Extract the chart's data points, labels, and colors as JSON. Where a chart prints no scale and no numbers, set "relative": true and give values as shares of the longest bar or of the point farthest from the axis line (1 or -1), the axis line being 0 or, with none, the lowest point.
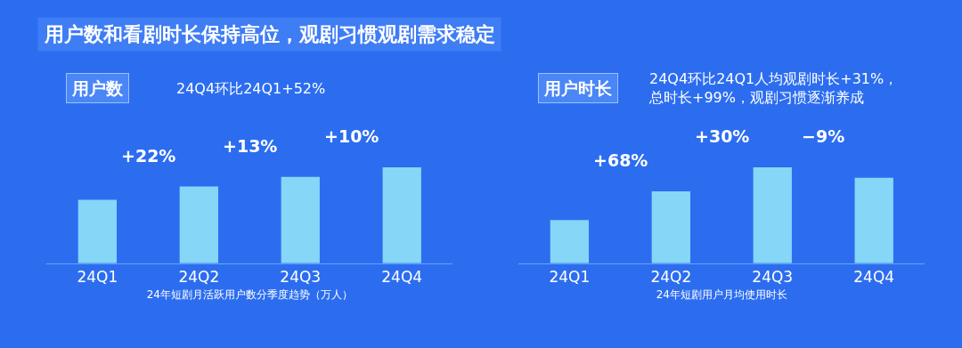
{
  "chart_data": [
    {
      "type": "other",
      "title": "用户数和看剧时长保持高位，观剧习惯观剧需求稳定"
    },
    {
      "type": "bar",
      "relative": true,
      "title": "用户数",
      "subtitle": "24Q4环比24Q1+52%",
      "xlabel": "24年短剧月活跃用户数分季度趋势（万人）",
      "categories": [
        "24Q1",
        "24Q2",
        "24Q3",
        "24Q4"
      ],
      "values": [
        0.66,
        0.8,
        0.9,
        1
      ],
      "color": "#86d6f8",
      "annotations": [
        "+22%",
        "+13%",
        "+10%"
      ]
    },
    {
      "type": "bar",
      "relative": true,
      "title": "用户时长",
      "subtitle": "24Q4环比24Q1人均观剧时长+31%，总时长+99%，观剧习惯逐渐养成",
      "xlabel": "24年短剧用户月均使用时长",
      "categories": [
        "24Q1",
        "24Q2",
        "24Q3",
        "24Q4"
      ],
      "values": [
        0.45,
        0.75,
        1,
        0.89
      ],
      "color": "#86d6f8",
      "annotations": [
        "+68%",
        "+30%",
        "−9%"
      ]
    }
  ]
}
